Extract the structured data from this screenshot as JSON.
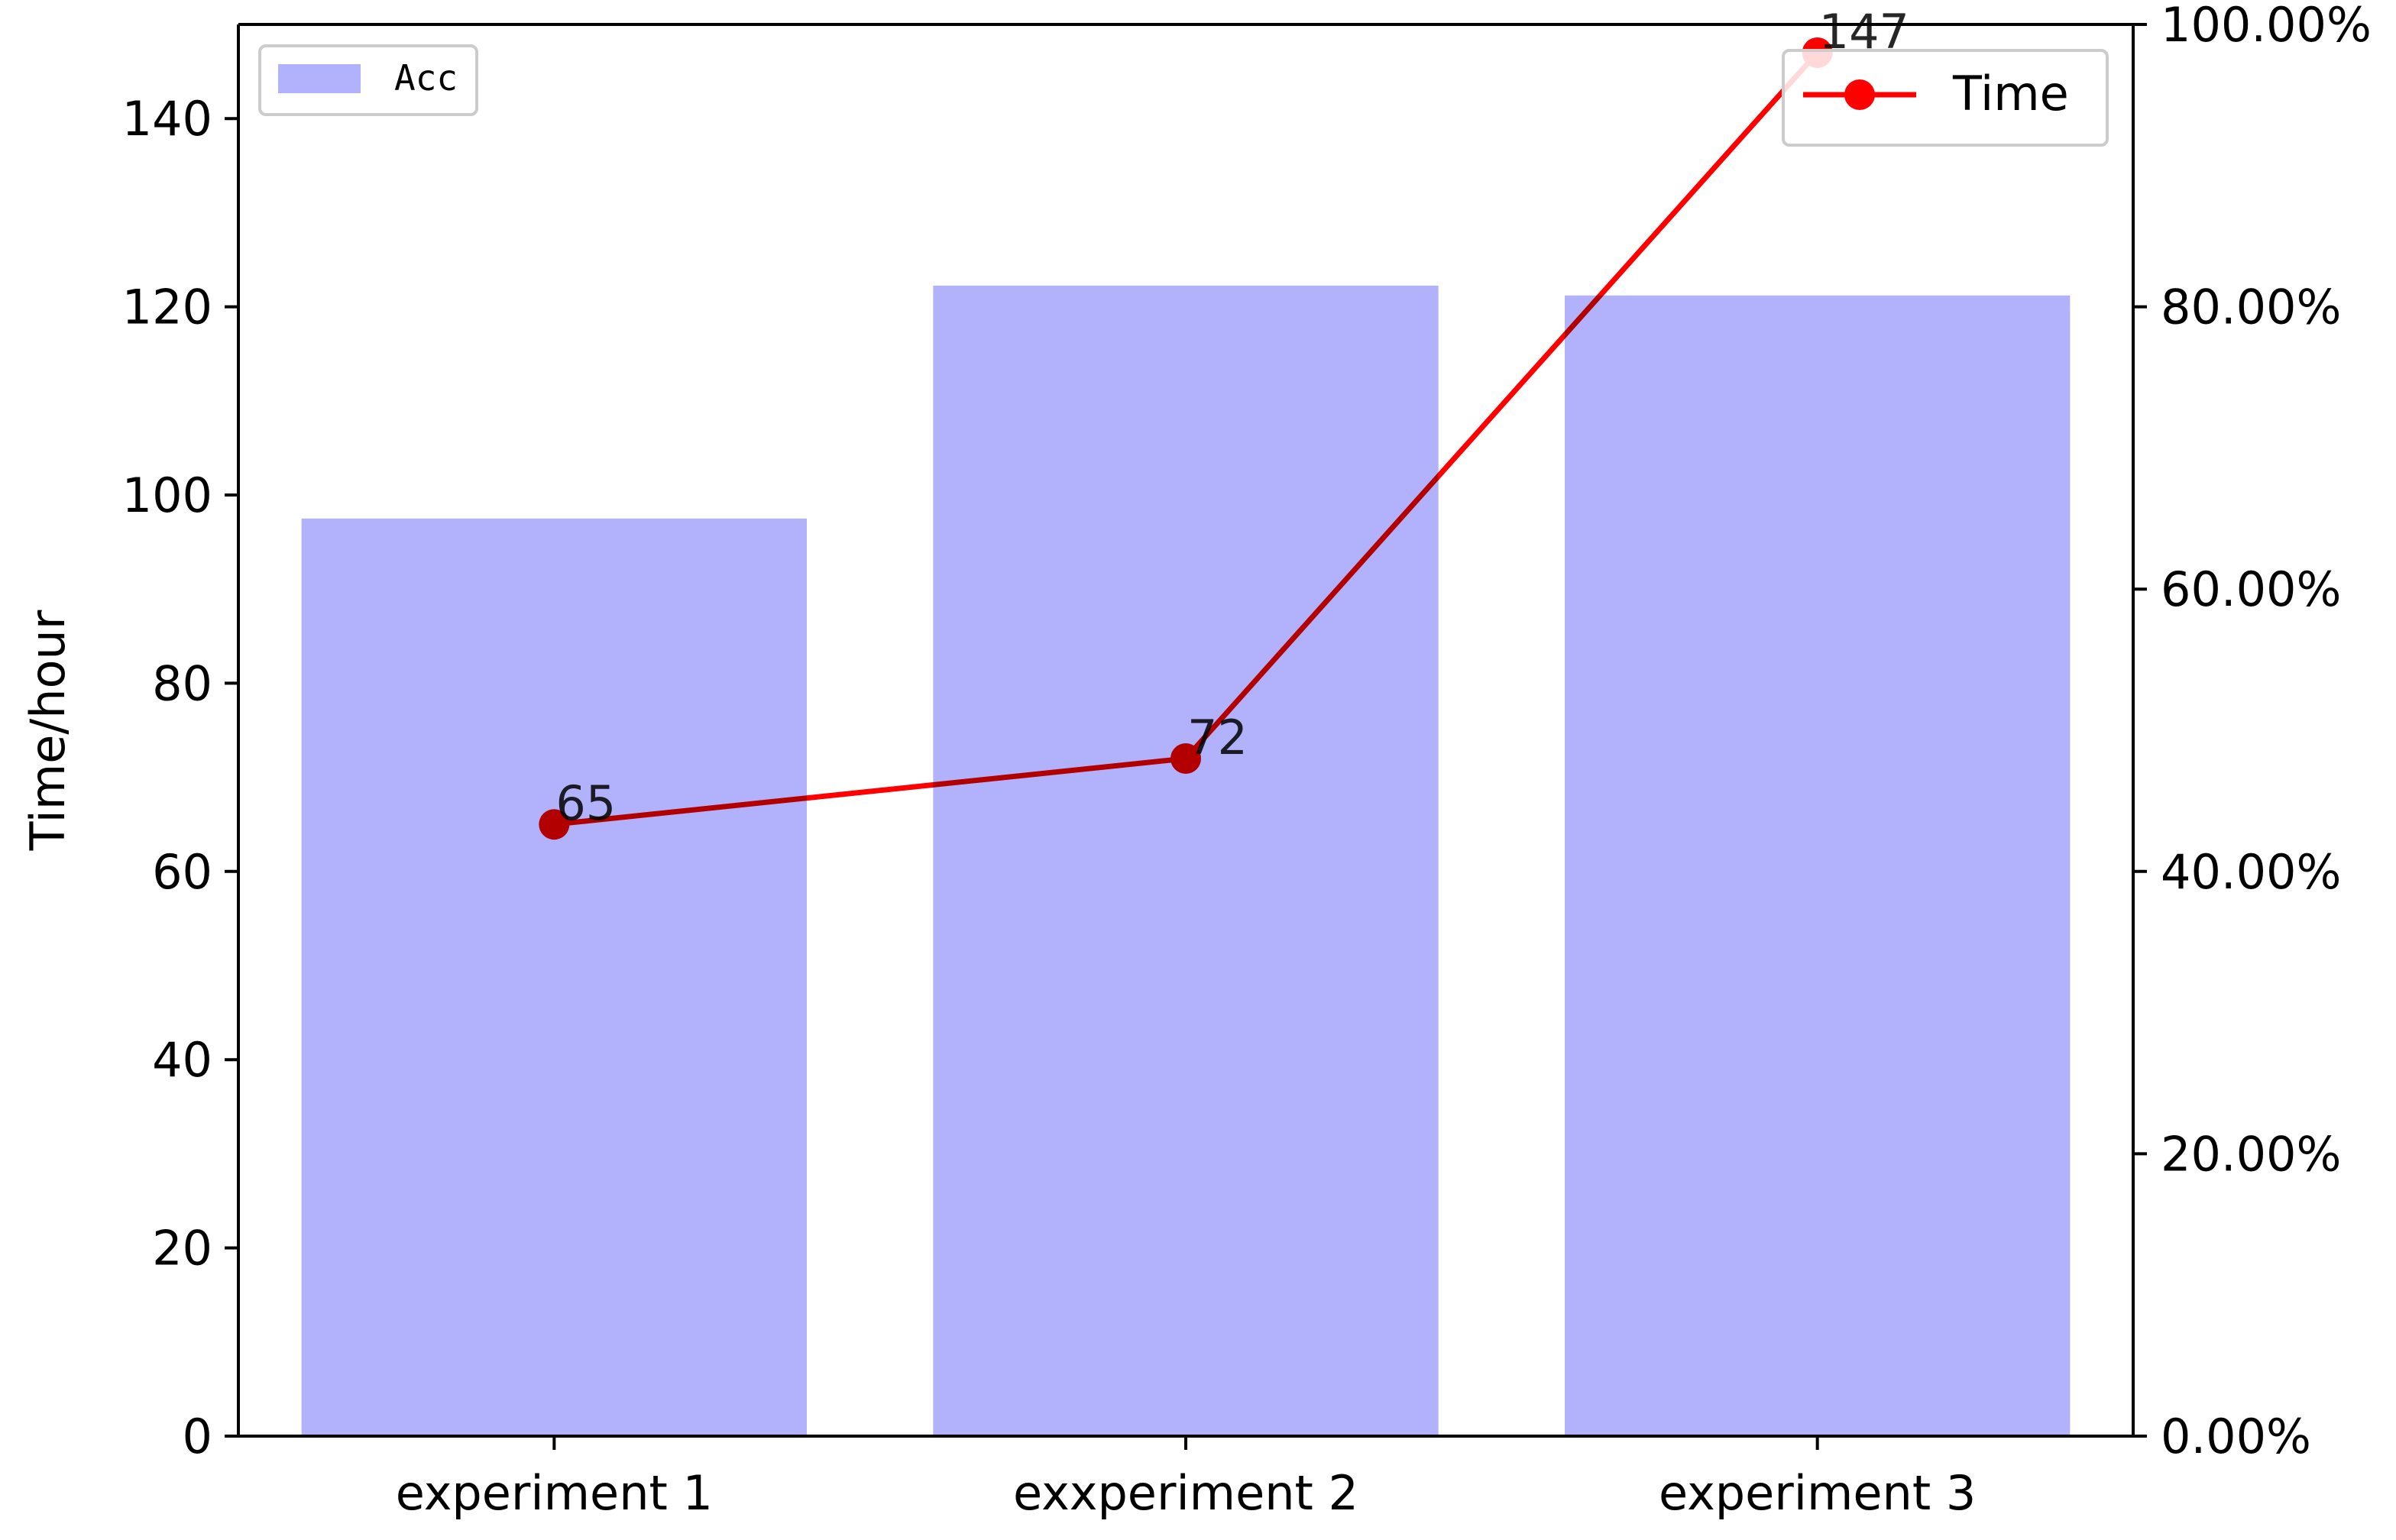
{
  "chart_data": {
    "type": "bar",
    "categories": [
      "experiment 1",
      "exxperiment 2",
      "experiment 3"
    ],
    "series": [
      {
        "name": "Acc",
        "chart_type": "bar",
        "axis": "right",
        "values": [
          0.65,
          0.815,
          0.808
        ],
        "color": "#b2b2fc"
      },
      {
        "name": "Time",
        "chart_type": "line",
        "axis": "left",
        "values": [
          65,
          72,
          147
        ],
        "data_labels": [
          "65",
          "72",
          "147"
        ],
        "color": "#ff0000",
        "marker": "circle"
      }
    ],
    "ylabel": "Time/hour",
    "y_left": {
      "ylim": [
        0,
        150
      ],
      "ticks": [
        0,
        20,
        40,
        60,
        80,
        100,
        120,
        140
      ],
      "tick_labels": [
        "0",
        "20",
        "40",
        "60",
        "80",
        "100",
        "120",
        "140"
      ]
    },
    "y_right": {
      "ylim": [
        0,
        1
      ],
      "ticks": [
        0,
        0.2,
        0.4,
        0.6,
        0.8,
        1.0
      ],
      "tick_labels": [
        "0.00%",
        "20.00%",
        "40.00%",
        "60.00%",
        "80.00%",
        "100.00%"
      ]
    },
    "grid": false,
    "legends": [
      {
        "entries": [
          "Acc"
        ],
        "placement": "top-left"
      },
      {
        "entries": [
          "Time"
        ],
        "placement": "top-right"
      }
    ]
  }
}
